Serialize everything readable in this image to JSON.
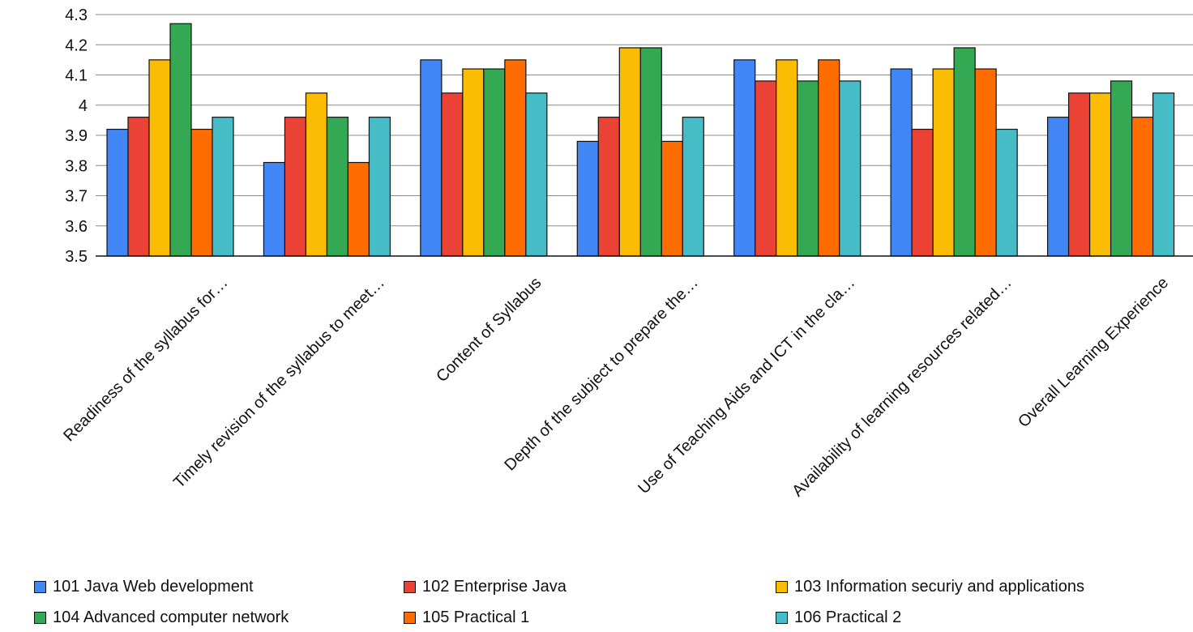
{
  "chart_data": {
    "type": "bar",
    "title": "",
    "xlabel": "",
    "ylabel": "",
    "ylim": [
      3.5,
      4.3
    ],
    "yticks": [
      3.5,
      3.6,
      3.7,
      3.8,
      3.9,
      4,
      4.1,
      4.2,
      4.3
    ],
    "ytick_labels": [
      "3.5",
      "3.6",
      "3.7",
      "3.8",
      "3.9",
      "4",
      "4.1",
      "4.2",
      "4.3"
    ],
    "grid": "horizontal",
    "legend_position": "bottom",
    "categories": [
      "Readiness of the syllabus for…",
      "Timely revision of the syllabus to meet…",
      "Content of Syllabus",
      "Depth of the subject to prepare the…",
      "Use of Teaching Aids and ICT in the cla…",
      "Availability of learning resources related…",
      "Overall Learning Experience"
    ],
    "series": [
      {
        "name": "101 Java Web development",
        "color": "#4285f4",
        "values": [
          3.92,
          3.81,
          4.15,
          3.88,
          4.15,
          4.12,
          3.96
        ]
      },
      {
        "name": "102 Enterprise Java",
        "color": "#ea4335",
        "values": [
          3.96,
          3.96,
          4.04,
          3.96,
          4.08,
          3.92,
          4.04
        ]
      },
      {
        "name": "103 Information securiy and applications",
        "color": "#fbbc04",
        "values": [
          4.15,
          4.04,
          4.12,
          4.19,
          4.15,
          4.12,
          4.04
        ]
      },
      {
        "name": "104 Advanced computer network",
        "color": "#34a853",
        "values": [
          4.27,
          3.96,
          4.12,
          4.19,
          4.08,
          4.19,
          4.08
        ]
      },
      {
        "name": "105 Practical 1",
        "color": "#ff6d01",
        "values": [
          3.92,
          3.81,
          4.15,
          3.88,
          4.15,
          4.12,
          3.96
        ]
      },
      {
        "name": "106 Practical 2",
        "color": "#46bdc6",
        "values": [
          3.96,
          3.96,
          4.04,
          3.96,
          4.08,
          3.92,
          4.04
        ]
      }
    ]
  }
}
